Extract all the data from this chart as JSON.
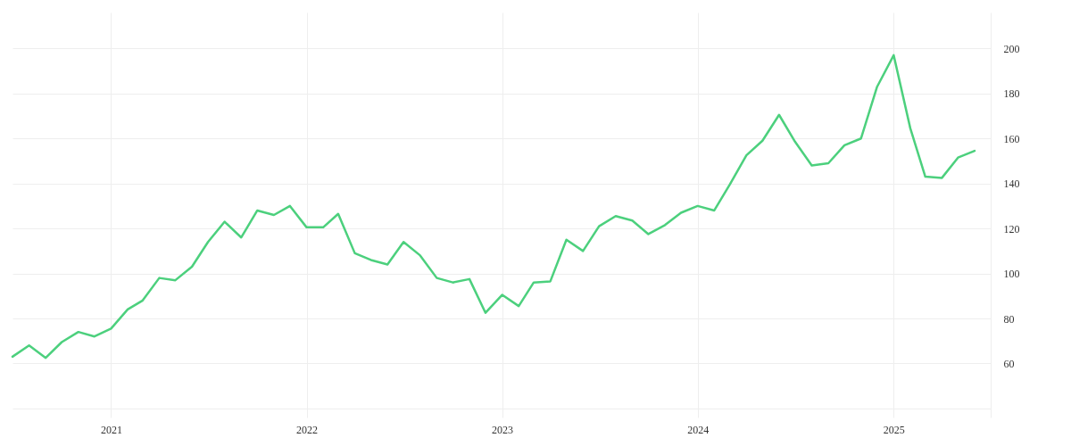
{
  "chart_data": {
    "type": "line",
    "x": [
      "2020-07",
      "2020-08",
      "2020-09",
      "2020-10",
      "2020-11",
      "2020-12",
      "2021-01",
      "2021-02",
      "2021-03",
      "2021-04",
      "2021-05",
      "2021-06",
      "2021-07",
      "2021-08",
      "2021-09",
      "2021-10",
      "2021-11",
      "2021-12",
      "2022-01",
      "2022-02",
      "2022-03",
      "2022-04",
      "2022-05",
      "2022-06",
      "2022-07",
      "2022-08",
      "2022-09",
      "2022-10",
      "2022-11",
      "2022-12",
      "2023-01",
      "2023-02",
      "2023-03",
      "2023-04",
      "2023-05",
      "2023-06",
      "2023-07",
      "2023-08",
      "2023-09",
      "2023-10",
      "2023-11",
      "2023-12",
      "2024-01",
      "2024-02",
      "2024-03",
      "2024-04",
      "2024-05",
      "2024-06",
      "2024-07",
      "2024-08",
      "2024-09",
      "2024-10",
      "2024-11",
      "2024-12",
      "2025-01",
      "2025-02",
      "2025-03",
      "2025-04",
      "2025-05",
      "2025-06"
    ],
    "series": [
      {
        "color": "#4cd07d",
        "values": [
          63,
          68,
          62.5,
          69.5,
          74,
          72,
          75.5,
          84,
          88,
          98,
          97,
          103,
          114,
          123,
          116,
          128,
          126,
          130,
          120.5,
          120.5,
          126.5,
          109,
          106,
          104,
          114,
          108,
          98,
          96,
          97.5,
          82.5,
          90.5,
          85.5,
          96,
          96.5,
          115,
          110,
          121,
          125.5,
          123.5,
          117.5,
          121.5,
          127,
          130,
          128,
          139.5,
          152.5,
          159,
          170.5,
          158.5,
          148,
          149,
          157,
          160,
          183,
          197,
          164.5,
          143,
          142.5,
          151.5,
          154.5
        ]
      }
    ],
    "xlim": [
      "2020-07",
      "2025-07"
    ],
    "xticks": [
      "2021",
      "2022",
      "2023",
      "2024",
      "2025"
    ],
    "ylim": [
      36,
      216
    ],
    "yticks": [
      {
        "value": 40,
        "label": null
      },
      60,
      80,
      100,
      120,
      140,
      160,
      180,
      200
    ],
    "grid": true,
    "marker": "none",
    "line_style": "solid"
  }
}
